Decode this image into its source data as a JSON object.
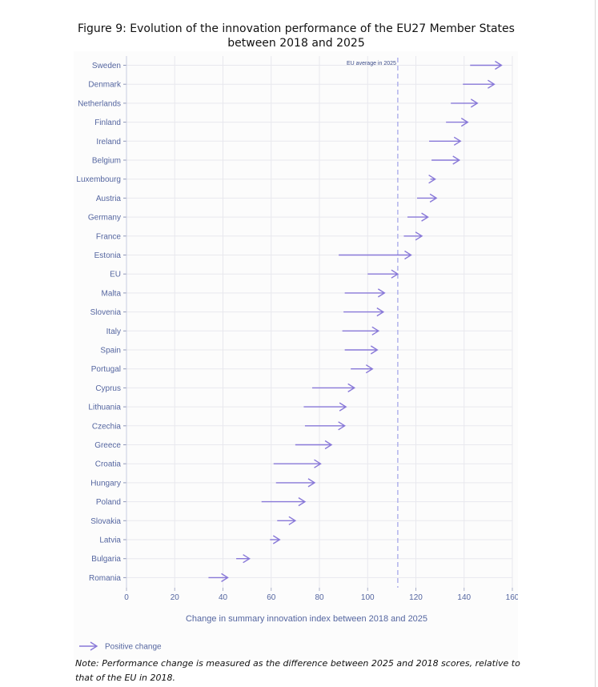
{
  "page": {
    "title": "Figure 9: Evolution of the innovation performance of the EU27 Member States between 2018 and 2025",
    "note": "Note: Performance change is measured as the difference between 2025 and 2018 scores, relative to that of the EU in 2018."
  },
  "chart_data": {
    "type": "arrow",
    "title": "Figure 9: Evolution of the innovation performance of the EU27 Member States between 2018 and 2025",
    "xlabel": "Change in summary innovation index between 2018 and 2025",
    "ylabel": "",
    "xlim": [
      0,
      160
    ],
    "xticks": [
      0,
      20,
      40,
      60,
      80,
      100,
      120,
      140,
      160
    ],
    "grid": true,
    "categories": [
      "Sweden",
      "Denmark",
      "Netherlands",
      "Finland",
      "Ireland",
      "Belgium",
      "Luxembourg",
      "Austria",
      "Germany",
      "France",
      "Estonia",
      "EU",
      "Malta",
      "Slovenia",
      "Italy",
      "Spain",
      "Portugal",
      "Cyprus",
      "Lithuania",
      "Czechia",
      "Greece",
      "Croatia",
      "Hungary",
      "Poland",
      "Slovakia",
      "Latvia",
      "Bulgaria",
      "Romania"
    ],
    "series": [
      {
        "name": "Positive change",
        "start": [
          142.5,
          139.5,
          134.5,
          132.5,
          125.5,
          126.5,
          126.0,
          120.5,
          116.5,
          115.0,
          88.0,
          100.0,
          90.5,
          90.0,
          89.5,
          90.5,
          93.0,
          77.0,
          73.5,
          74.0,
          70.0,
          61.0,
          62.0,
          56.0,
          62.5,
          59.5,
          45.5,
          34.0
        ],
        "end": [
          155.5,
          152.5,
          145.5,
          141.5,
          138.5,
          138.0,
          128.0,
          128.5,
          125.0,
          122.5,
          118.0,
          112.5,
          107.0,
          106.5,
          104.5,
          104.0,
          102.0,
          94.5,
          91.0,
          90.5,
          85.0,
          80.5,
          78.0,
          74.0,
          70.0,
          63.5,
          51.0,
          42.0
        ]
      }
    ],
    "reference_line": {
      "value": 112.5,
      "label": "EU average in 2025"
    },
    "legend": {
      "position": "bottom-left",
      "entries": [
        "Positive change"
      ]
    },
    "colors": {
      "arrow": "#8878d8",
      "grid": "#e8e8ee",
      "axis_text": "#5566a0",
      "ref_line": "#9fa0e8"
    }
  }
}
